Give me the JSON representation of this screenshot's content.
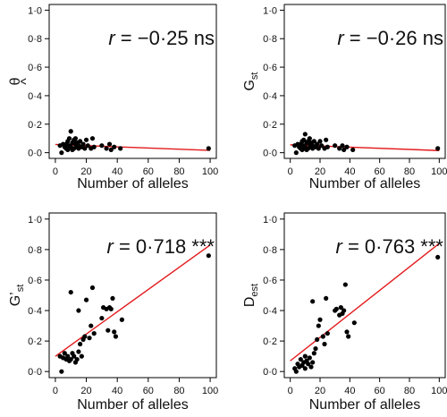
{
  "figure": {
    "background": "#ffffff",
    "point_color": "#000000",
    "fit_color": "#e31a1c"
  },
  "chart_data": [
    {
      "type": "scatter",
      "panel": "top-left",
      "ylabel_main": "θ",
      "ylabel_accent": "^",
      "ylabel_sub": "",
      "xlabel": "Number of alleles",
      "annotation_r": "r",
      "annotation_rest": " = −0·25 ns",
      "xlim": [
        0,
        100
      ],
      "ylim": [
        0,
        1
      ],
      "xticks": [
        0,
        20,
        40,
        60,
        80,
        100
      ],
      "xtick_labels": [
        "0",
        "20",
        "40",
        "60",
        "80",
        "100"
      ],
      "yticks": [
        0,
        0.2,
        0.4,
        0.6,
        0.8,
        1.0
      ],
      "ytick_labels": [
        "0·0",
        "0·2",
        "0·4",
        "0·6",
        "0·8",
        "1·0"
      ],
      "fit": {
        "x": [
          0,
          100
        ],
        "y": [
          0.058,
          0.016
        ]
      },
      "points": [
        [
          3,
          0.05
        ],
        [
          4,
          0.0
        ],
        [
          5,
          0.06
        ],
        [
          6,
          0.04
        ],
        [
          7,
          0.06
        ],
        [
          7,
          0.03
        ],
        [
          8,
          0.08
        ],
        [
          8,
          0.02
        ],
        [
          9,
          0.1
        ],
        [
          9,
          0.05
        ],
        [
          10,
          0.15
        ],
        [
          10,
          0.04
        ],
        [
          11,
          0.07
        ],
        [
          11,
          0.02
        ],
        [
          12,
          0.09
        ],
        [
          12,
          0.03
        ],
        [
          13,
          0.06
        ],
        [
          13,
          0.1
        ],
        [
          14,
          0.04
        ],
        [
          14,
          0.07
        ],
        [
          15,
          0.03
        ],
        [
          15,
          0.05
        ],
        [
          16,
          0.08
        ],
        [
          17,
          0.04
        ],
        [
          18,
          0.06
        ],
        [
          19,
          0.03
        ],
        [
          20,
          0.09
        ],
        [
          21,
          0.05
        ],
        [
          23,
          0.03
        ],
        [
          24,
          0.1
        ],
        [
          25,
          0.04
        ],
        [
          30,
          0.05
        ],
        [
          33,
          0.03
        ],
        [
          35,
          0.06
        ],
        [
          36,
          0.02
        ],
        [
          38,
          0.04
        ],
        [
          42,
          0.03
        ],
        [
          99,
          0.03
        ]
      ]
    },
    {
      "type": "scatter",
      "panel": "top-right",
      "ylabel_main": "G",
      "ylabel_accent": "",
      "ylabel_sub": "st",
      "xlabel": "Number of alleles",
      "annotation_r": "r",
      "annotation_rest": " = −0·26 ns",
      "xlim": [
        0,
        100
      ],
      "ylim": [
        0,
        1
      ],
      "xticks": [
        0,
        20,
        40,
        60,
        80,
        100
      ],
      "xtick_labels": [
        "0",
        "20",
        "40",
        "60",
        "80",
        "100"
      ],
      "yticks": [
        0,
        0.2,
        0.4,
        0.6,
        0.8,
        1.0
      ],
      "ytick_labels": [
        "0·0",
        "0·2",
        "0·4",
        "0·6",
        "0·8",
        "1·0"
      ],
      "fit": {
        "x": [
          0,
          100
        ],
        "y": [
          0.055,
          0.015
        ]
      },
      "points": [
        [
          3,
          0.05
        ],
        [
          4,
          0.0
        ],
        [
          5,
          0.06
        ],
        [
          6,
          0.04
        ],
        [
          7,
          0.06
        ],
        [
          7,
          0.03
        ],
        [
          8,
          0.08
        ],
        [
          8,
          0.02
        ],
        [
          9,
          0.09
        ],
        [
          9,
          0.05
        ],
        [
          10,
          0.13
        ],
        [
          10,
          0.04
        ],
        [
          11,
          0.07
        ],
        [
          11,
          0.02
        ],
        [
          12,
          0.08
        ],
        [
          12,
          0.03
        ],
        [
          13,
          0.06
        ],
        [
          13,
          0.1
        ],
        [
          14,
          0.04
        ],
        [
          14,
          0.07
        ],
        [
          15,
          0.03
        ],
        [
          15,
          0.05
        ],
        [
          16,
          0.08
        ],
        [
          17,
          0.04
        ],
        [
          18,
          0.06
        ],
        [
          19,
          0.03
        ],
        [
          20,
          0.08
        ],
        [
          21,
          0.05
        ],
        [
          23,
          0.03
        ],
        [
          24,
          0.09
        ],
        [
          25,
          0.04
        ],
        [
          30,
          0.05
        ],
        [
          33,
          0.03
        ],
        [
          35,
          0.05
        ],
        [
          36,
          0.02
        ],
        [
          38,
          0.04
        ],
        [
          42,
          0.02
        ],
        [
          99,
          0.03
        ]
      ]
    },
    {
      "type": "scatter",
      "panel": "bottom-left",
      "ylabel_main": "G’",
      "ylabel_accent": "",
      "ylabel_sub": "st",
      "xlabel": "Number of alleles",
      "annotation_r": "r",
      "annotation_rest": " = 0·718 ***",
      "xlim": [
        0,
        100
      ],
      "ylim": [
        0,
        1
      ],
      "xticks": [
        0,
        20,
        40,
        60,
        80,
        100
      ],
      "xtick_labels": [
        "0",
        "20",
        "40",
        "60",
        "80",
        "100"
      ],
      "yticks": [
        0,
        0.2,
        0.4,
        0.6,
        0.8,
        1.0
      ],
      "ytick_labels": [
        "0·0",
        "0·2",
        "0·4",
        "0·6",
        "0·8",
        "1·0"
      ],
      "fit": {
        "x": [
          0,
          100
        ],
        "y": [
          0.1,
          0.83
        ]
      },
      "points": [
        [
          3,
          0.1
        ],
        [
          4,
          0.0
        ],
        [
          5,
          0.09
        ],
        [
          6,
          0.12
        ],
        [
          7,
          0.08
        ],
        [
          8,
          0.1
        ],
        [
          9,
          0.07
        ],
        [
          10,
          0.52
        ],
        [
          10,
          0.08
        ],
        [
          11,
          0.12
        ],
        [
          12,
          0.1
        ],
        [
          13,
          0.06
        ],
        [
          14,
          0.08
        ],
        [
          15,
          0.4
        ],
        [
          15,
          0.13
        ],
        [
          16,
          0.18
        ],
        [
          17,
          0.1
        ],
        [
          18,
          0.21
        ],
        [
          19,
          0.23
        ],
        [
          20,
          0.47
        ],
        [
          22,
          0.22
        ],
        [
          23,
          0.3
        ],
        [
          24,
          0.55
        ],
        [
          25,
          0.25
        ],
        [
          30,
          0.35
        ],
        [
          31,
          0.42
        ],
        [
          33,
          0.41
        ],
        [
          34,
          0.27
        ],
        [
          35,
          0.42
        ],
        [
          36,
          0.41
        ],
        [
          37,
          0.48
        ],
        [
          38,
          0.26
        ],
        [
          39,
          0.23
        ],
        [
          43,
          0.34
        ],
        [
          99,
          0.76
        ]
      ]
    },
    {
      "type": "scatter",
      "panel": "bottom-right",
      "ylabel_main": "D",
      "ylabel_accent": "",
      "ylabel_sub": "est",
      "xlabel": "Number of alleles",
      "annotation_r": "r",
      "annotation_rest": " = 0·763 ***",
      "xlim": [
        0,
        100
      ],
      "ylim": [
        0,
        1
      ],
      "xticks": [
        0,
        20,
        40,
        60,
        80,
        100
      ],
      "xtick_labels": [
        "0",
        "20",
        "40",
        "60",
        "80",
        "100"
      ],
      "yticks": [
        0,
        0.2,
        0.4,
        0.6,
        0.8,
        1.0
      ],
      "ytick_labels": [
        "0·0",
        "0·2",
        "0·4",
        "0·6",
        "0·8",
        "1·0"
      ],
      "fit": {
        "x": [
          0,
          100
        ],
        "y": [
          0.07,
          0.84
        ]
      },
      "points": [
        [
          3,
          0.02
        ],
        [
          4,
          0.0
        ],
        [
          5,
          0.05
        ],
        [
          6,
          0.03
        ],
        [
          7,
          0.08
        ],
        [
          8,
          0.04
        ],
        [
          9,
          0.06
        ],
        [
          10,
          0.1
        ],
        [
          10,
          0.02
        ],
        [
          11,
          0.07
        ],
        [
          12,
          0.05
        ],
        [
          13,
          0.09
        ],
        [
          14,
          0.03
        ],
        [
          15,
          0.46
        ],
        [
          15,
          0.06
        ],
        [
          16,
          0.12
        ],
        [
          17,
          0.15
        ],
        [
          18,
          0.21
        ],
        [
          19,
          0.3
        ],
        [
          20,
          0.34
        ],
        [
          22,
          0.23
        ],
        [
          23,
          0.18
        ],
        [
          24,
          0.48
        ],
        [
          25,
          0.25
        ],
        [
          30,
          0.4
        ],
        [
          31,
          0.41
        ],
        [
          33,
          0.37
        ],
        [
          34,
          0.42
        ],
        [
          35,
          0.38
        ],
        [
          36,
          0.4
        ],
        [
          37,
          0.57
        ],
        [
          38,
          0.26
        ],
        [
          39,
          0.23
        ],
        [
          43,
          0.32
        ],
        [
          99,
          0.75
        ]
      ]
    }
  ]
}
